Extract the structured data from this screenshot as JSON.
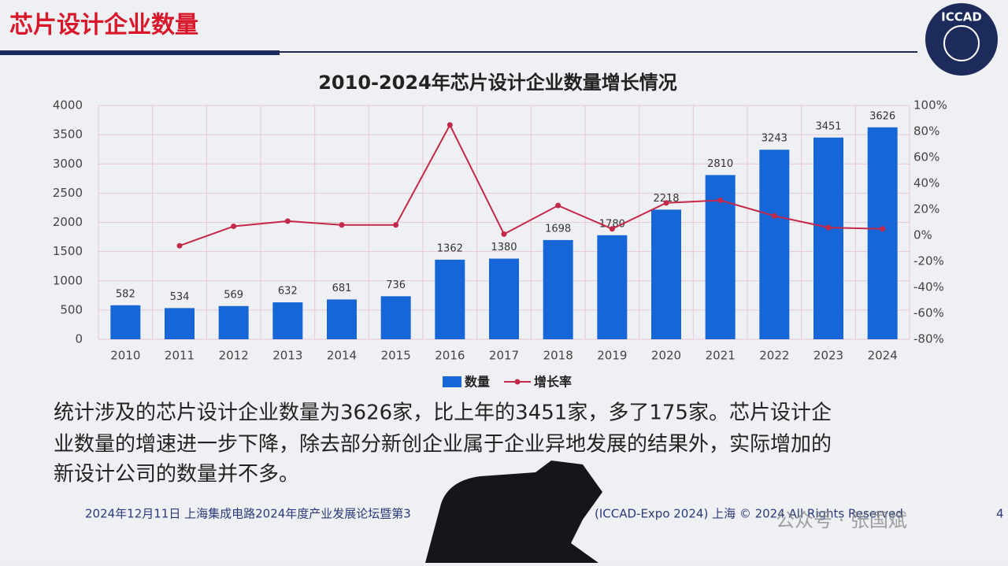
{
  "slide_title": "芯片设计企业数量",
  "logo_text": "ICCAD",
  "chart_data": {
    "type": "bar-line",
    "title": "2010-2024年芯片设计企业数量增长情况",
    "categories": [
      "2010",
      "2011",
      "2012",
      "2013",
      "2014",
      "2015",
      "2016",
      "2017",
      "2018",
      "2019",
      "2020",
      "2021",
      "2022",
      "2023",
      "2024"
    ],
    "series": [
      {
        "name": "数量",
        "type": "bar",
        "color": "#1766d8",
        "values": [
          582,
          534,
          569,
          632,
          681,
          736,
          1362,
          1380,
          1698,
          1780,
          2218,
          2810,
          3243,
          3451,
          3626
        ]
      },
      {
        "name": "增长率",
        "type": "line",
        "axis": "y2",
        "color": "#c42848",
        "values": [
          null,
          -8,
          7,
          11,
          8,
          8,
          85,
          1,
          23,
          5,
          25,
          27,
          15,
          6,
          5
        ]
      }
    ],
    "ylim": [
      0,
      4000
    ],
    "yticks": [
      0,
      500,
      1000,
      1500,
      2000,
      2500,
      3000,
      3500,
      4000
    ],
    "y2lim": [
      -80,
      100
    ],
    "y2ticks": [
      {
        "value": -80,
        "label": "-80%"
      },
      {
        "value": -60,
        "label": "-60%"
      },
      {
        "value": -40,
        "label": "-40%"
      },
      {
        "value": -20,
        "label": "-20%"
      },
      {
        "value": 0,
        "label": "0%"
      },
      {
        "value": 20,
        "label": "20%"
      },
      {
        "value": 40,
        "label": "40%"
      },
      {
        "value": 60,
        "label": "60%"
      },
      {
        "value": 80,
        "label": "80%"
      },
      {
        "value": 100,
        "label": "100%"
      }
    ],
    "grid": true,
    "legend": "bottom"
  },
  "paragraph": [
    "统计涉及的芯片设计企业数量为3626家，比上年的3451家，多了175家。芯片设计企",
    "业数量的增速进一步下降，除去部分新创企业属于企业异地发展的结果外，实际增加的",
    "新设计公司的数量并不多。"
  ],
  "footer": {
    "left": "2024年12月11日  上海集成电路2024年度产业发展论坛暨第3",
    "right": "(ICCAD-Expo 2024)    上海 © 2024 All Rights Reserved",
    "page": "4"
  },
  "watermark": "公众号 · 张国斌"
}
